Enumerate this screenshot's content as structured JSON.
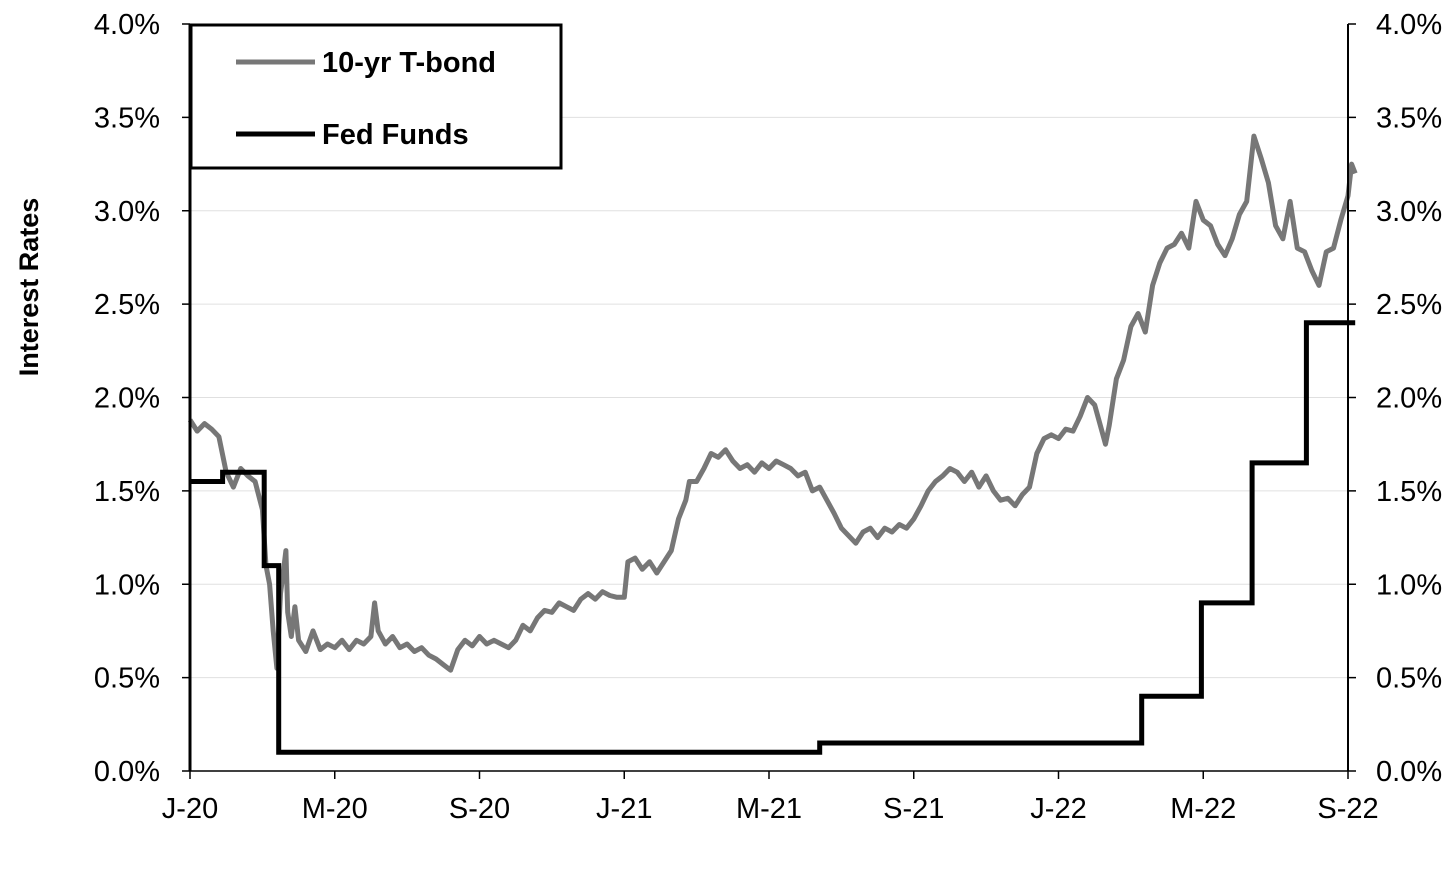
{
  "chart_data": {
    "type": "line",
    "title": "",
    "ylabel": "Interest Rates",
    "ylabel_right": "",
    "xlabel": "",
    "ylim": [
      0,
      4
    ],
    "y_ticks": [
      "0.0%",
      "0.5%",
      "1.0%",
      "1.5%",
      "2.0%",
      "2.5%",
      "3.0%",
      "3.5%",
      "4.0%"
    ],
    "x_ticks": [
      "J-20",
      "M-20",
      "S-20",
      "J-21",
      "M-21",
      "S-21",
      "J-22",
      "M-22",
      "S-22"
    ],
    "x_range_months": [
      0,
      32
    ],
    "grid": true,
    "legend_placement": "top-left",
    "series": [
      {
        "name": "10-yr T-bond",
        "color": "#777777",
        "style": "line",
        "points": [
          [
            0.0,
            1.88
          ],
          [
            0.2,
            1.82
          ],
          [
            0.4,
            1.86
          ],
          [
            0.6,
            1.83
          ],
          [
            0.8,
            1.79
          ],
          [
            1.0,
            1.6
          ],
          [
            1.2,
            1.52
          ],
          [
            1.4,
            1.62
          ],
          [
            1.6,
            1.58
          ],
          [
            1.8,
            1.55
          ],
          [
            2.0,
            1.4
          ],
          [
            2.1,
            1.1
          ],
          [
            2.2,
            1.0
          ],
          [
            2.3,
            0.75
          ],
          [
            2.4,
            0.55
          ],
          [
            2.5,
            0.95
          ],
          [
            2.6,
            1.1
          ],
          [
            2.65,
            1.18
          ],
          [
            2.7,
            0.85
          ],
          [
            2.8,
            0.72
          ],
          [
            2.9,
            0.88
          ],
          [
            3.0,
            0.7
          ],
          [
            3.2,
            0.64
          ],
          [
            3.4,
            0.75
          ],
          [
            3.6,
            0.65
          ],
          [
            3.8,
            0.68
          ],
          [
            4.0,
            0.66
          ],
          [
            4.2,
            0.7
          ],
          [
            4.4,
            0.65
          ],
          [
            4.6,
            0.7
          ],
          [
            4.8,
            0.68
          ],
          [
            5.0,
            0.72
          ],
          [
            5.1,
            0.9
          ],
          [
            5.2,
            0.75
          ],
          [
            5.4,
            0.68
          ],
          [
            5.6,
            0.72
          ],
          [
            5.8,
            0.66
          ],
          [
            6.0,
            0.68
          ],
          [
            6.2,
            0.64
          ],
          [
            6.4,
            0.66
          ],
          [
            6.6,
            0.62
          ],
          [
            6.8,
            0.6
          ],
          [
            7.0,
            0.57
          ],
          [
            7.2,
            0.54
          ],
          [
            7.4,
            0.65
          ],
          [
            7.6,
            0.7
          ],
          [
            7.8,
            0.67
          ],
          [
            8.0,
            0.72
          ],
          [
            8.2,
            0.68
          ],
          [
            8.4,
            0.7
          ],
          [
            8.6,
            0.68
          ],
          [
            8.8,
            0.66
          ],
          [
            9.0,
            0.7
          ],
          [
            9.2,
            0.78
          ],
          [
            9.4,
            0.75
          ],
          [
            9.6,
            0.82
          ],
          [
            9.8,
            0.86
          ],
          [
            10.0,
            0.85
          ],
          [
            10.2,
            0.9
          ],
          [
            10.4,
            0.88
          ],
          [
            10.6,
            0.86
          ],
          [
            10.8,
            0.92
          ],
          [
            11.0,
            0.95
          ],
          [
            11.2,
            0.92
          ],
          [
            11.4,
            0.96
          ],
          [
            11.6,
            0.94
          ],
          [
            11.8,
            0.93
          ],
          [
            12.0,
            0.93
          ],
          [
            12.1,
            1.12
          ],
          [
            12.3,
            1.14
          ],
          [
            12.5,
            1.08
          ],
          [
            12.7,
            1.12
          ],
          [
            12.9,
            1.06
          ],
          [
            13.1,
            1.12
          ],
          [
            13.3,
            1.18
          ],
          [
            13.5,
            1.35
          ],
          [
            13.7,
            1.45
          ],
          [
            13.8,
            1.55
          ],
          [
            14.0,
            1.55
          ],
          [
            14.2,
            1.62
          ],
          [
            14.4,
            1.7
          ],
          [
            14.6,
            1.68
          ],
          [
            14.8,
            1.72
          ],
          [
            15.0,
            1.66
          ],
          [
            15.2,
            1.62
          ],
          [
            15.4,
            1.64
          ],
          [
            15.6,
            1.6
          ],
          [
            15.8,
            1.65
          ],
          [
            16.0,
            1.62
          ],
          [
            16.2,
            1.66
          ],
          [
            16.4,
            1.64
          ],
          [
            16.6,
            1.62
          ],
          [
            16.8,
            1.58
          ],
          [
            17.0,
            1.6
          ],
          [
            17.2,
            1.5
          ],
          [
            17.4,
            1.52
          ],
          [
            17.6,
            1.45
          ],
          [
            17.8,
            1.38
          ],
          [
            18.0,
            1.3
          ],
          [
            18.2,
            1.26
          ],
          [
            18.4,
            1.22
          ],
          [
            18.6,
            1.28
          ],
          [
            18.8,
            1.3
          ],
          [
            19.0,
            1.25
          ],
          [
            19.2,
            1.3
          ],
          [
            19.4,
            1.28
          ],
          [
            19.6,
            1.32
          ],
          [
            19.8,
            1.3
          ],
          [
            20.0,
            1.35
          ],
          [
            20.2,
            1.42
          ],
          [
            20.4,
            1.5
          ],
          [
            20.6,
            1.55
          ],
          [
            20.8,
            1.58
          ],
          [
            21.0,
            1.62
          ],
          [
            21.2,
            1.6
          ],
          [
            21.4,
            1.55
          ],
          [
            21.6,
            1.6
          ],
          [
            21.8,
            1.52
          ],
          [
            22.0,
            1.58
          ],
          [
            22.2,
            1.5
          ],
          [
            22.4,
            1.45
          ],
          [
            22.6,
            1.46
          ],
          [
            22.8,
            1.42
          ],
          [
            23.0,
            1.48
          ],
          [
            23.2,
            1.52
          ],
          [
            23.4,
            1.7
          ],
          [
            23.6,
            1.78
          ],
          [
            23.8,
            1.8
          ],
          [
            24.0,
            1.78
          ],
          [
            24.2,
            1.83
          ],
          [
            24.4,
            1.82
          ],
          [
            24.6,
            1.9
          ],
          [
            24.8,
            2.0
          ],
          [
            25.0,
            1.96
          ],
          [
            25.2,
            1.82
          ],
          [
            25.3,
            1.75
          ],
          [
            25.4,
            1.85
          ],
          [
            25.6,
            2.1
          ],
          [
            25.8,
            2.2
          ],
          [
            26.0,
            2.38
          ],
          [
            26.2,
            2.45
          ],
          [
            26.4,
            2.35
          ],
          [
            26.6,
            2.6
          ],
          [
            26.8,
            2.72
          ],
          [
            27.0,
            2.8
          ],
          [
            27.2,
            2.82
          ],
          [
            27.4,
            2.88
          ],
          [
            27.6,
            2.8
          ],
          [
            27.8,
            3.05
          ],
          [
            28.0,
            2.95
          ],
          [
            28.2,
            2.92
          ],
          [
            28.4,
            2.82
          ],
          [
            28.6,
            2.76
          ],
          [
            28.8,
            2.85
          ],
          [
            29.0,
            2.98
          ],
          [
            29.2,
            3.05
          ],
          [
            29.4,
            3.4
          ],
          [
            29.6,
            3.28
          ],
          [
            29.8,
            3.15
          ],
          [
            30.0,
            2.92
          ],
          [
            30.2,
            2.85
          ],
          [
            30.4,
            3.05
          ],
          [
            30.6,
            2.8
          ],
          [
            30.8,
            2.78
          ],
          [
            31.0,
            2.68
          ],
          [
            31.2,
            2.6
          ],
          [
            31.4,
            2.78
          ],
          [
            31.6,
            2.8
          ],
          [
            31.8,
            2.95
          ],
          [
            32.0,
            3.08
          ],
          [
            32.1,
            3.25
          ],
          [
            32.2,
            3.2
          ]
        ]
      },
      {
        "name": "Fed Funds",
        "color": "#000000",
        "style": "step",
        "points": [
          [
            0.0,
            1.55
          ],
          [
            0.9,
            1.55
          ],
          [
            0.9,
            1.6
          ],
          [
            2.05,
            1.6
          ],
          [
            2.05,
            1.1
          ],
          [
            2.45,
            1.1
          ],
          [
            2.45,
            0.1
          ],
          [
            17.4,
            0.1
          ],
          [
            17.4,
            0.15
          ],
          [
            26.3,
            0.15
          ],
          [
            26.3,
            0.4
          ],
          [
            27.95,
            0.4
          ],
          [
            27.95,
            0.9
          ],
          [
            29.35,
            0.9
          ],
          [
            29.35,
            1.65
          ],
          [
            30.85,
            1.65
          ],
          [
            30.85,
            2.4
          ],
          [
            32.2,
            2.4
          ]
        ]
      }
    ]
  }
}
